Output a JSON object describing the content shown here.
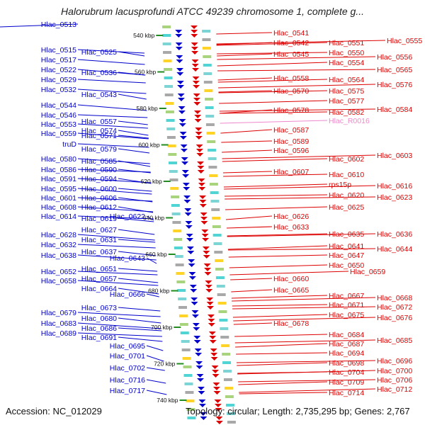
{
  "title": "Halorubrum lacusprofundi ATCC 49239 chromosome 1, complete g...",
  "accession": "Accession: NC_012029",
  "topology": "Topology: circular; Length: 2,735,295 bp; Genes: 2,767",
  "colors": {
    "plus": "#0000cc",
    "minus": "#dd0000",
    "rna": "#ee88cc",
    "backbone": "#888888",
    "ticks": "#228b22"
  },
  "ticks": [
    "540 kbp",
    "560 kbp",
    "580 kbp",
    "600 kbp",
    "620 kbp",
    "640 kbp",
    "660 kbp",
    "680 kbp",
    "700 kbp",
    "720 kbp",
    "740 kbp"
  ],
  "left_genes": [
    [
      "Hlac_0513",
      34
    ],
    [
      "Hlac_0515",
      70
    ],
    [
      "Hlac_0525",
      73
    ],
    [
      "Hlac_0517",
      84
    ],
    [
      "Hlac_0522",
      98
    ],
    [
      "Hlac_0536",
      102
    ],
    [
      "Hlac_0529",
      112
    ],
    [
      "Hlac_0532",
      126
    ],
    [
      "Hlac_0543",
      133
    ],
    [
      "Hlac_0544",
      148
    ],
    [
      "Hlac_0546",
      162
    ],
    [
      "Hlac_0557",
      171
    ],
    [
      "Hlac_0553",
      175
    ],
    [
      "Hlac_0574",
      184
    ],
    [
      "Hlac_0559",
      188
    ],
    [
      "Hlac_0571",
      191
    ],
    [
      "truD",
      203
    ],
    [
      "Hlac_0579",
      210
    ],
    [
      "Hlac_0580",
      224
    ],
    [
      "Hlac_0585",
      227
    ],
    [
      "Hlac_0586",
      239
    ],
    [
      "Hlac_0590",
      239
    ],
    [
      "Hlac_0591",
      252
    ],
    [
      "Hlac_0594",
      252
    ],
    [
      "Hlac_0595",
      266
    ],
    [
      "Hlac_0600",
      266
    ],
    [
      "Hlac_0601",
      279
    ],
    [
      "Hlac_0606",
      279
    ],
    [
      "Hlac_0608",
      292
    ],
    [
      "Hlac_0612",
      292
    ],
    [
      "Hlac_0614",
      305
    ],
    [
      "Hlac_0619",
      308
    ],
    [
      "Hlac_0622",
      305
    ],
    [
      "Hlac_0627",
      324
    ],
    [
      "Hlac_0628",
      331
    ],
    [
      "Hlac_0631",
      338
    ],
    [
      "Hlac_0632",
      345
    ],
    [
      "Hlac_0637",
      355
    ],
    [
      "Hlac_0638",
      360
    ],
    [
      "Hlac_0643",
      364
    ],
    [
      "Hlac_0651",
      379
    ],
    [
      "Hlac_0652",
      383
    ],
    [
      "Hlac_0657",
      393
    ],
    [
      "Hlac_0658",
      396
    ],
    [
      "Hlac_0664",
      407
    ],
    [
      "Hlac_0666",
      415
    ],
    [
      "Hlac_0673",
      434
    ],
    [
      "Hlac_0679",
      441
    ],
    [
      "Hlac_0680",
      449
    ],
    [
      "Hlac_0683",
      456
    ],
    [
      "Hlac_0686",
      463
    ],
    [
      "Hlac_0689",
      470
    ],
    [
      "Hlac_0691",
      476
    ],
    [
      "Hlac_0695",
      488
    ],
    [
      "Hlac_0701",
      502
    ],
    [
      "Hlac_0702",
      519
    ],
    [
      "Hlac_0716",
      536
    ],
    [
      "Hlac_0717",
      551
    ]
  ],
  "right_genes": [
    [
      "Hlac_0541",
      46,
      0
    ],
    [
      "Hlac_0542",
      60,
      0
    ],
    [
      "Hlac_0551",
      60,
      1
    ],
    [
      "Hlac_0555",
      57,
      2
    ],
    [
      "Hlac_0550",
      74,
      1
    ],
    [
      "Hlac_0545",
      76,
      0
    ],
    [
      "Hlac_0556",
      80,
      2
    ],
    [
      "Hlac_0554",
      88,
      1
    ],
    [
      "Hlac_0565",
      98,
      2
    ],
    [
      "Hlac_0558",
      110,
      0
    ],
    [
      "Hlac_0564",
      112,
      1
    ],
    [
      "Hlac_0576",
      119,
      2
    ],
    [
      "Hlac_0570",
      128,
      0
    ],
    [
      "Hlac_0575",
      128,
      1
    ],
    [
      "Hlac_0577",
      142,
      1
    ],
    [
      "Hlac_0578",
      155,
      0
    ],
    [
      "Hlac_0582",
      158,
      1
    ],
    [
      "Hlac_0584",
      154,
      2
    ],
    [
      "Hlac_R0016",
      170,
      1
    ],
    [
      "Hlac_0587",
      183,
      0
    ],
    [
      "Hlac_0589",
      199,
      0
    ],
    [
      "Hlac_0596",
      212,
      0
    ],
    [
      "Hlac_0602",
      224,
      1
    ],
    [
      "Hlac_0603",
      219,
      2
    ],
    [
      "Hlac_0607",
      242,
      0
    ],
    [
      "Hlac_0610",
      246,
      1
    ],
    [
      "rps15p",
      260,
      1
    ],
    [
      "Hlac_0616",
      262,
      2
    ],
    [
      "Hlac_0620",
      275,
      1
    ],
    [
      "Hlac_0623",
      278,
      2
    ],
    [
      "Hlac_0625",
      292,
      1
    ],
    [
      "Hlac_0626",
      305,
      0
    ],
    [
      "Hlac_0633",
      320,
      0
    ],
    [
      "Hlac_0635",
      330,
      1
    ],
    [
      "Hlac_0636",
      330,
      2
    ],
    [
      "Hlac_0641",
      347,
      1
    ],
    [
      "Hlac_0644",
      351,
      2
    ],
    [
      "Hlac_0647",
      360,
      1
    ],
    [
      "Hlac_0650",
      374,
      1
    ],
    [
      "Hlac_0659",
      383,
      2
    ],
    [
      "Hlac_0660",
      393,
      0
    ],
    [
      "Hlac_0665",
      409,
      0
    ],
    [
      "Hlac_0667",
      417,
      1
    ],
    [
      "Hlac_0668",
      420,
      2
    ],
    [
      "Hlac_0671",
      430,
      1
    ],
    [
      "Hlac_0672",
      433,
      2
    ],
    [
      "Hlac_0675",
      444,
      1
    ],
    [
      "Hlac_0676",
      448,
      2
    ],
    [
      "Hlac_0678",
      456,
      0
    ],
    [
      "Hlac_0684",
      472,
      1
    ],
    [
      "Hlac_0685",
      480,
      2
    ],
    [
      "Hlac_0687",
      485,
      1
    ],
    [
      "Hlac_0694",
      498,
      1
    ],
    [
      "Hlac_0696",
      509,
      2
    ],
    [
      "Hlac_0698",
      512,
      1
    ],
    [
      "Hlac_0700",
      523,
      2
    ],
    [
      "Hlac_0704",
      525,
      1
    ],
    [
      "Hlac_0706",
      536,
      2
    ],
    [
      "Hlac_0709",
      539,
      1
    ],
    [
      "Hlac_0712",
      549,
      2
    ],
    [
      "Hlac_0714",
      554,
      1
    ]
  ]
}
